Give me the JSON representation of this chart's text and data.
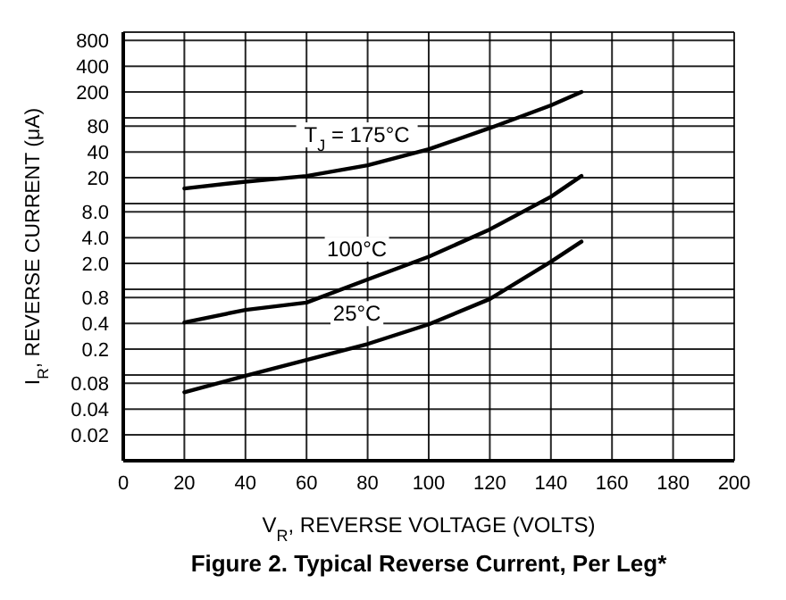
{
  "chart_data": {
    "type": "line",
    "title": "Figure 2. Typical Reverse Current, Per Leg*",
    "xlabel": "V$_{R}$, REVERSE VOLTAGE (VOLTS)",
    "ylabel": "I$_{R}$, REVERSE CURRENT (μA)",
    "log": "y",
    "grid": true,
    "marker": "none",
    "line_style": "solid",
    "xlim": [
      0,
      200
    ],
    "xticks": [
      0,
      20,
      40,
      60,
      80,
      100,
      120,
      140,
      160,
      180,
      200
    ],
    "ylim": [
      0.01,
      1000
    ],
    "yticks": [
      {
        "value": 0.01,
        "label": null
      },
      0.02,
      0.04,
      0.08,
      {
        "value": 0.1,
        "label": null
      },
      0.2,
      0.4,
      0.8,
      {
        "value": 1,
        "label": null
      },
      {
        "value": 2,
        "label": "2.0"
      },
      {
        "value": 4,
        "label": "4.0"
      },
      {
        "value": 8,
        "label": "8.0"
      },
      {
        "value": 10,
        "label": null
      },
      20,
      40,
      80,
      {
        "value": 100,
        "label": null
      },
      200,
      400,
      800,
      {
        "value": 1000,
        "label": null
      }
    ],
    "x": [
      20,
      40,
      60,
      80,
      100,
      120,
      140,
      150
    ],
    "series": [
      {
        "name": "T$_{J}$ = 175°C",
        "color": "#000000",
        "values": [
          15,
          18,
          21,
          28,
          43,
          76,
          140,
          200
        ]
      },
      {
        "name": "100°C",
        "color": "#000000",
        "values": [
          0.41,
          0.575,
          0.7,
          1.3,
          2.4,
          5,
          12,
          21
        ]
      },
      {
        "name": "25°C",
        "color": "#000000",
        "values": [
          0.063,
          0.098,
          0.15,
          0.23,
          0.39,
          0.77,
          2.1,
          3.6
        ]
      }
    ]
  }
}
